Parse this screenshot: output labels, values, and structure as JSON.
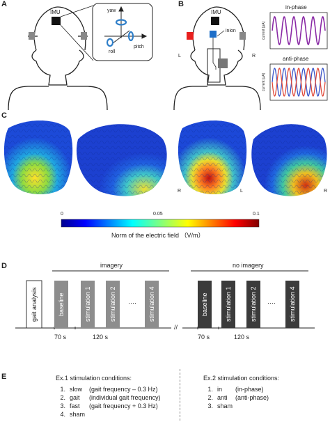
{
  "panels": {
    "a": {
      "letter": "A",
      "imu": "IMU",
      "yaw": "yaw",
      "roll": "roll",
      "pitch": "pitch"
    },
    "b": {
      "letter": "B",
      "imu": "IMU",
      "inion": "inion",
      "left": "L",
      "right": "R",
      "in_phase": "in-phase",
      "anti_phase": "anti-phase",
      "ylabel": "current [μA]"
    },
    "c": {
      "letter": "C",
      "r1": "R",
      "l1": "L",
      "r2": "R",
      "cb_min": "0",
      "cb_mid": "0.05",
      "cb_max": "0.1",
      "cb_label": "Norm of the electric field （V/m）"
    },
    "d": {
      "letter": "D",
      "imagery": "imagery",
      "no_imagery": "no imagery",
      "gait_analysis": "gait analysis",
      "blocks_imagery": [
        "baseline",
        "stimulation 1",
        "stimulation 2",
        "stimulation 4"
      ],
      "blocks_no_imagery": [
        "baseline",
        "stimulation 1",
        "stimulation 2",
        "stimulation 4"
      ],
      "dots": "····",
      "break_mark": "//",
      "t70": "70 s",
      "t120": "120 s",
      "t70b": "70 s",
      "t120b": "120 s"
    },
    "e": {
      "letter": "E",
      "ex1_title": "Ex.1 stimulation conditions:",
      "ex1": [
        {
          "num": "1.",
          "name": "slow",
          "desc": "(gait frequency – 0.3 Hz)"
        },
        {
          "num": "2.",
          "name": "gait",
          "desc": "(individual gait frequency)"
        },
        {
          "num": "3.",
          "name": "fast",
          "desc": "(gait frequency + 0.3 Hz)"
        },
        {
          "num": "4.",
          "name": "sham",
          "desc": ""
        }
      ],
      "ex2_title": "Ex.2 stimulation conditions:",
      "ex2": [
        {
          "num": "1.",
          "name": "in",
          "desc": "(in-phase)"
        },
        {
          "num": "2.",
          "name": "anti",
          "desc": "(anti-phase)"
        },
        {
          "num": "3.",
          "name": "sham",
          "desc": ""
        }
      ]
    }
  },
  "colors": {
    "electrode_gray": "#888888",
    "electrode_red": "#e8201e",
    "electrode_blue": "#1e6fc8",
    "wave_purple": "#8a2aa6",
    "wave_blue": "#3a55c8",
    "wave_red": "#e04a3a",
    "block_light": "#8d8d8d",
    "block_dark": "#3b3b3b",
    "imu_blue": "#2f7fc9"
  }
}
